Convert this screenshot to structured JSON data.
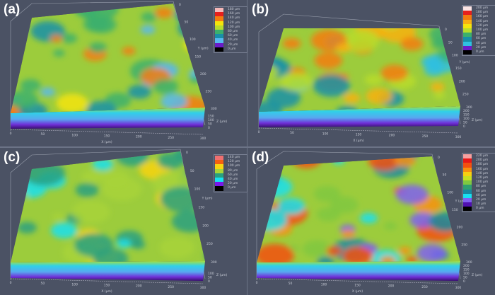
{
  "panels": [
    {
      "label": "(a)",
      "x_axis": "X (µm)",
      "y_axis": "Y (µm)",
      "z_axis": "Z (µm)",
      "x_ticks": [
        "0",
        "50",
        "100",
        "150",
        "200",
        "250",
        "300"
      ],
      "y_ticks": [
        "0",
        "50",
        "100",
        "150",
        "200",
        "250",
        "300"
      ],
      "z_ticks": [
        "0",
        "50",
        "100",
        "150"
      ],
      "legend": [
        {
          "label": "180 µm",
          "color": "#f5b8b8"
        },
        {
          "label": "160 µm",
          "color": "#e8201c"
        },
        {
          "label": "140 µm",
          "color": "#f47c10"
        },
        {
          "label": "120 µm",
          "color": "#f5e40c"
        },
        {
          "label": "100 µm",
          "color": "#b8dc2c"
        },
        {
          "label": "80 µm",
          "color": "#3cb06c"
        },
        {
          "label": "60 µm",
          "color": "#1890a8"
        },
        {
          "label": "40 µm",
          "color": "#58b8f0"
        },
        {
          "label": "20 µm",
          "color": "#6a1cc8"
        },
        {
          "label": "0 µm",
          "color": "#000000"
        }
      ]
    },
    {
      "label": "(b)",
      "x_axis": "X (µm)",
      "y_axis": "Y (µm)",
      "z_axis": "Z (µm)",
      "x_ticks": [
        "0",
        "50",
        "100",
        "150",
        "200",
        "250",
        "300"
      ],
      "y_ticks": [
        "0",
        "50",
        "100",
        "150",
        "200",
        "250",
        "300"
      ],
      "z_ticks": [
        "0",
        "50",
        "100",
        "150",
        "200"
      ],
      "legend": [
        {
          "label": "200 µm",
          "color": "#fbe4e4"
        },
        {
          "label": "180 µm",
          "color": "#e8201c"
        },
        {
          "label": "160 µm",
          "color": "#f47c10"
        },
        {
          "label": "140 µm",
          "color": "#f8b010"
        },
        {
          "label": "120 µm",
          "color": "#f5e40c"
        },
        {
          "label": "100 µm",
          "color": "#b8dc2c"
        },
        {
          "label": "80 µm",
          "color": "#3cb06c"
        },
        {
          "label": "60 µm",
          "color": "#1890a8"
        },
        {
          "label": "40 µm",
          "color": "#30c0e0"
        },
        {
          "label": "20 µm",
          "color": "#6a1cc8"
        },
        {
          "label": "0 µm",
          "color": "#000000"
        }
      ]
    },
    {
      "label": "(c)",
      "x_axis": "X (µm)",
      "y_axis": "Y (µm)",
      "z_axis": "Z (µm)",
      "x_ticks": [
        "0",
        "50",
        "100",
        "150",
        "200",
        "250",
        "300"
      ],
      "y_ticks": [
        "0",
        "50",
        "100",
        "150",
        "200",
        "250",
        "300"
      ],
      "z_ticks": [
        "0",
        "50",
        "100"
      ],
      "legend": [
        {
          "label": "140 µm",
          "color": "#f07070"
        },
        {
          "label": "120 µm",
          "color": "#f46010"
        },
        {
          "label": "100 µm",
          "color": "#f8d410"
        },
        {
          "label": "80 µm",
          "color": "#a8d438"
        },
        {
          "label": "60 µm",
          "color": "#28a080"
        },
        {
          "label": "40 µm",
          "color": "#18e0f0"
        },
        {
          "label": "20 µm",
          "color": "#7818e8"
        },
        {
          "label": "0 µm",
          "color": "#000000"
        }
      ]
    },
    {
      "label": "(d)",
      "x_axis": "X (µm)",
      "y_axis": "Y (µm)",
      "z_axis": "Z (µm)",
      "x_ticks": [
        "0",
        "50",
        "100",
        "150",
        "200",
        "250",
        "300"
      ],
      "y_ticks": [
        "0",
        "50",
        "100",
        "150",
        "200",
        "250",
        "300"
      ],
      "z_ticks": [
        "0",
        "50",
        "100",
        "150",
        "200"
      ],
      "legend": [
        {
          "label": "220 µm",
          "color": "#f5a0a0"
        },
        {
          "label": "200 µm",
          "color": "#e81818"
        },
        {
          "label": "180 µm",
          "color": "#f45010"
        },
        {
          "label": "160 µm",
          "color": "#f89010"
        },
        {
          "label": "140 µm",
          "color": "#f8d010"
        },
        {
          "label": "120 µm",
          "color": "#c8e020"
        },
        {
          "label": "100 µm",
          "color": "#80c840"
        },
        {
          "label": "80 µm",
          "color": "#30a070"
        },
        {
          "label": "60 µm",
          "color": "#1888a0"
        },
        {
          "label": "40 µm",
          "color": "#18e0f0"
        },
        {
          "label": "20 µm",
          "color": "#8060f0"
        },
        {
          "label": "10 µm",
          "color": "#5010b0"
        },
        {
          "label": "0 µm",
          "color": "#000000"
        }
      ]
    }
  ]
}
